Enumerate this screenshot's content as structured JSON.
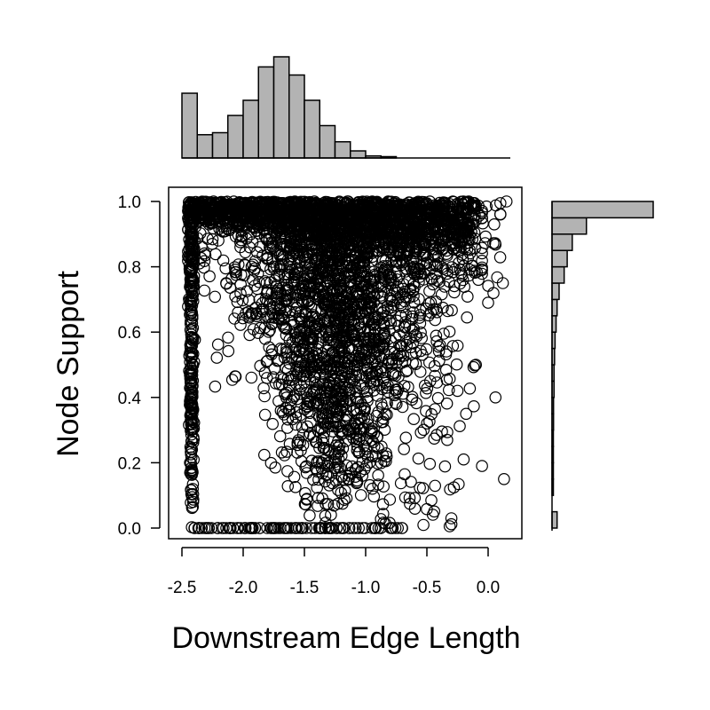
{
  "chart_data": {
    "type": "scatter",
    "title": "",
    "xlabel": "Downstream Edge Length",
    "ylabel": "Node Support",
    "xlim": [
      -2.5,
      0.2
    ],
    "ylim": [
      -0.03,
      1.04
    ],
    "x_ticks": [
      -2.5,
      -2.0,
      -1.5,
      -1.0,
      -0.5,
      0.0
    ],
    "x_tick_labels": [
      "-2.5",
      "-2.0",
      "-1.5",
      "-1.0",
      "-0.5",
      "0.0"
    ],
    "y_ticks": [
      0.0,
      0.2,
      0.4,
      0.6,
      0.8,
      1.0
    ],
    "y_tick_labels": [
      "0.0",
      "0.2",
      "0.4",
      "0.6",
      "0.8",
      "1.0"
    ],
    "grid": false,
    "marker": "open-circle",
    "point_color": "#000000",
    "hist_fill": "#b3b3b3",
    "scatter_outliers": [
      {
        "x": 0.12,
        "y": 0.75
      },
      {
        "x": 0.06,
        "y": 0.4
      },
      {
        "x": 0.13,
        "y": 0.15
      },
      {
        "x": -0.05,
        "y": 0.19
      },
      {
        "x": -0.2,
        "y": 0.21
      },
      {
        "x": -0.1,
        "y": 0.5
      },
      {
        "x": 0.05,
        "y": 0.93
      },
      {
        "x": -0.08,
        "y": 0.76
      },
      {
        "x": 0.0,
        "y": 0.69
      },
      {
        "x": -0.25,
        "y": 0.42
      },
      {
        "x": -0.3,
        "y": 0.03
      },
      {
        "x": 0.15,
        "y": 1.0
      }
    ],
    "top_histogram": {
      "bin_edges": [
        -2.5,
        -2.375,
        -2.25,
        -2.125,
        -2.0,
        -1.875,
        -1.75,
        -1.625,
        -1.5,
        -1.375,
        -1.25,
        -1.125,
        -1.0,
        -0.875,
        -0.75,
        -0.625,
        -0.5
      ],
      "heights": [
        0.64,
        0.23,
        0.25,
        0.42,
        0.57,
        0.9,
        1.0,
        0.82,
        0.57,
        0.32,
        0.16,
        0.07,
        0.02,
        0.01,
        0,
        0
      ]
    },
    "right_histogram": {
      "bin_edges": [
        0.0,
        0.05,
        0.1,
        0.15,
        0.2,
        0.25,
        0.3,
        0.35,
        0.4,
        0.45,
        0.5,
        0.55,
        0.6,
        0.65,
        0.7,
        0.75,
        0.8,
        0.85,
        0.9,
        0.95,
        1.0
      ],
      "heights": [
        0.05,
        0.0,
        0.005,
        0.005,
        0.01,
        0.01,
        0.015,
        0.015,
        0.02,
        0.02,
        0.025,
        0.03,
        0.04,
        0.05,
        0.07,
        0.12,
        0.15,
        0.2,
        0.34,
        1.0
      ]
    }
  }
}
